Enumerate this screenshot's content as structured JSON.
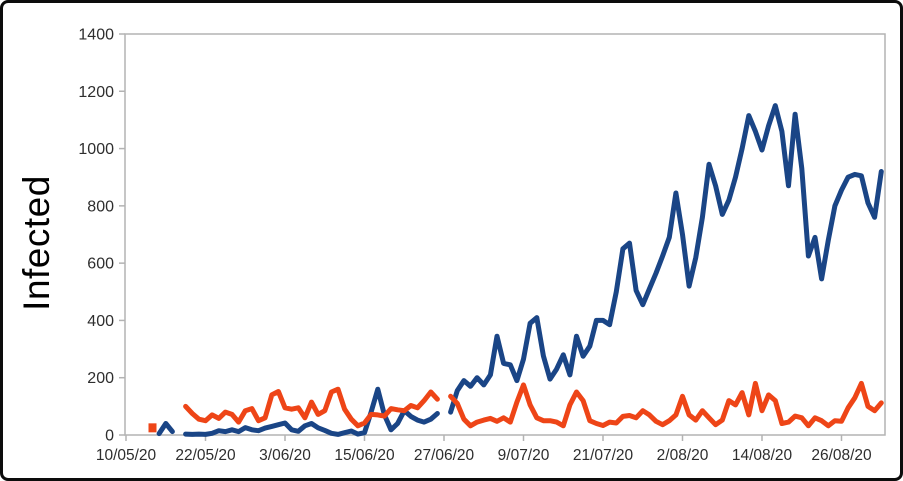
{
  "figure": {
    "background": "#ffffff",
    "border_color": "#0c0c0c"
  },
  "chart_data": {
    "type": "line",
    "title": "",
    "xlabel": "",
    "ylabel": "Infected",
    "ylim": [
      0,
      1400
    ],
    "y_ticks": [
      0,
      200,
      400,
      600,
      800,
      1000,
      1200,
      1400
    ],
    "x_tick_labels": [
      "10/05/20",
      "22/05/20",
      "3/06/20",
      "15/06/20",
      "27/06/20",
      "9/07/20",
      "21/07/20",
      "2/08/20",
      "14/08/20",
      "26/08/20"
    ],
    "x_tick_days": [
      0,
      12,
      24,
      36,
      48,
      60,
      72,
      84,
      96,
      108
    ],
    "x_unit": "days since 10/05/20, one point per day",
    "grid": false,
    "legend": "none",
    "axis_color": "#b3b3b3",
    "tick_label_color": "#2e2e2e",
    "series": [
      {
        "name": "blue-series",
        "color": "#1a4586",
        "values": [
          null,
          null,
          null,
          null,
          null,
          5,
          40,
          12,
          null,
          3,
          2,
          3,
          2,
          6,
          15,
          12,
          18,
          12,
          26,
          18,
          15,
          24,
          30,
          36,
          42,
          18,
          13,
          32,
          40,
          25,
          16,
          6,
          2,
          8,
          14,
          3,
          8,
          80,
          160,
          70,
          18,
          40,
          85,
          65,
          52,
          45,
          55,
          75,
          null,
          80,
          155,
          190,
          170,
          200,
          175,
          210,
          345,
          250,
          245,
          190,
          265,
          390,
          410,
          276,
          195,
          230,
          280,
          210,
          345,
          275,
          310,
          400,
          400,
          385,
          500,
          650,
          670,
          505,
          455,
          510,
          565,
          625,
          690,
          845,
          700,
          520,
          620,
          760,
          945,
          870,
          770,
          820,
          900,
          1000,
          1115,
          1060,
          995,
          1080,
          1150,
          1060,
          870,
          1120,
          930,
          625,
          690,
          545,
          680,
          800,
          855,
          900,
          910,
          905,
          810,
          760,
          920
        ]
      },
      {
        "name": "orange-series",
        "color": "#ee4517",
        "values": [
          null,
          null,
          null,
          null,
          25,
          null,
          null,
          null,
          null,
          100,
          75,
          55,
          50,
          70,
          58,
          80,
          72,
          45,
          85,
          92,
          50,
          60,
          140,
          152,
          95,
          90,
          95,
          60,
          115,
          72,
          85,
          150,
          160,
          90,
          55,
          32,
          42,
          72,
          70,
          66,
          92,
          88,
          85,
          103,
          95,
          120,
          150,
          125,
          null,
          135,
          110,
          55,
          32,
          45,
          52,
          58,
          48,
          60,
          45,
          115,
          175,
          105,
          60,
          50,
          50,
          45,
          32,
          105,
          150,
          120,
          50,
          40,
          33,
          45,
          42,
          65,
          68,
          60,
          85,
          70,
          48,
          36,
          50,
          70,
          135,
          70,
          52,
          85,
          60,
          36,
          52,
          120,
          105,
          148,
          70,
          180,
          85,
          140,
          120,
          40,
          45,
          66,
          60,
          32,
          60,
          50,
          32,
          50,
          48,
          95,
          130,
          180,
          100,
          85,
          112
        ]
      }
    ]
  }
}
